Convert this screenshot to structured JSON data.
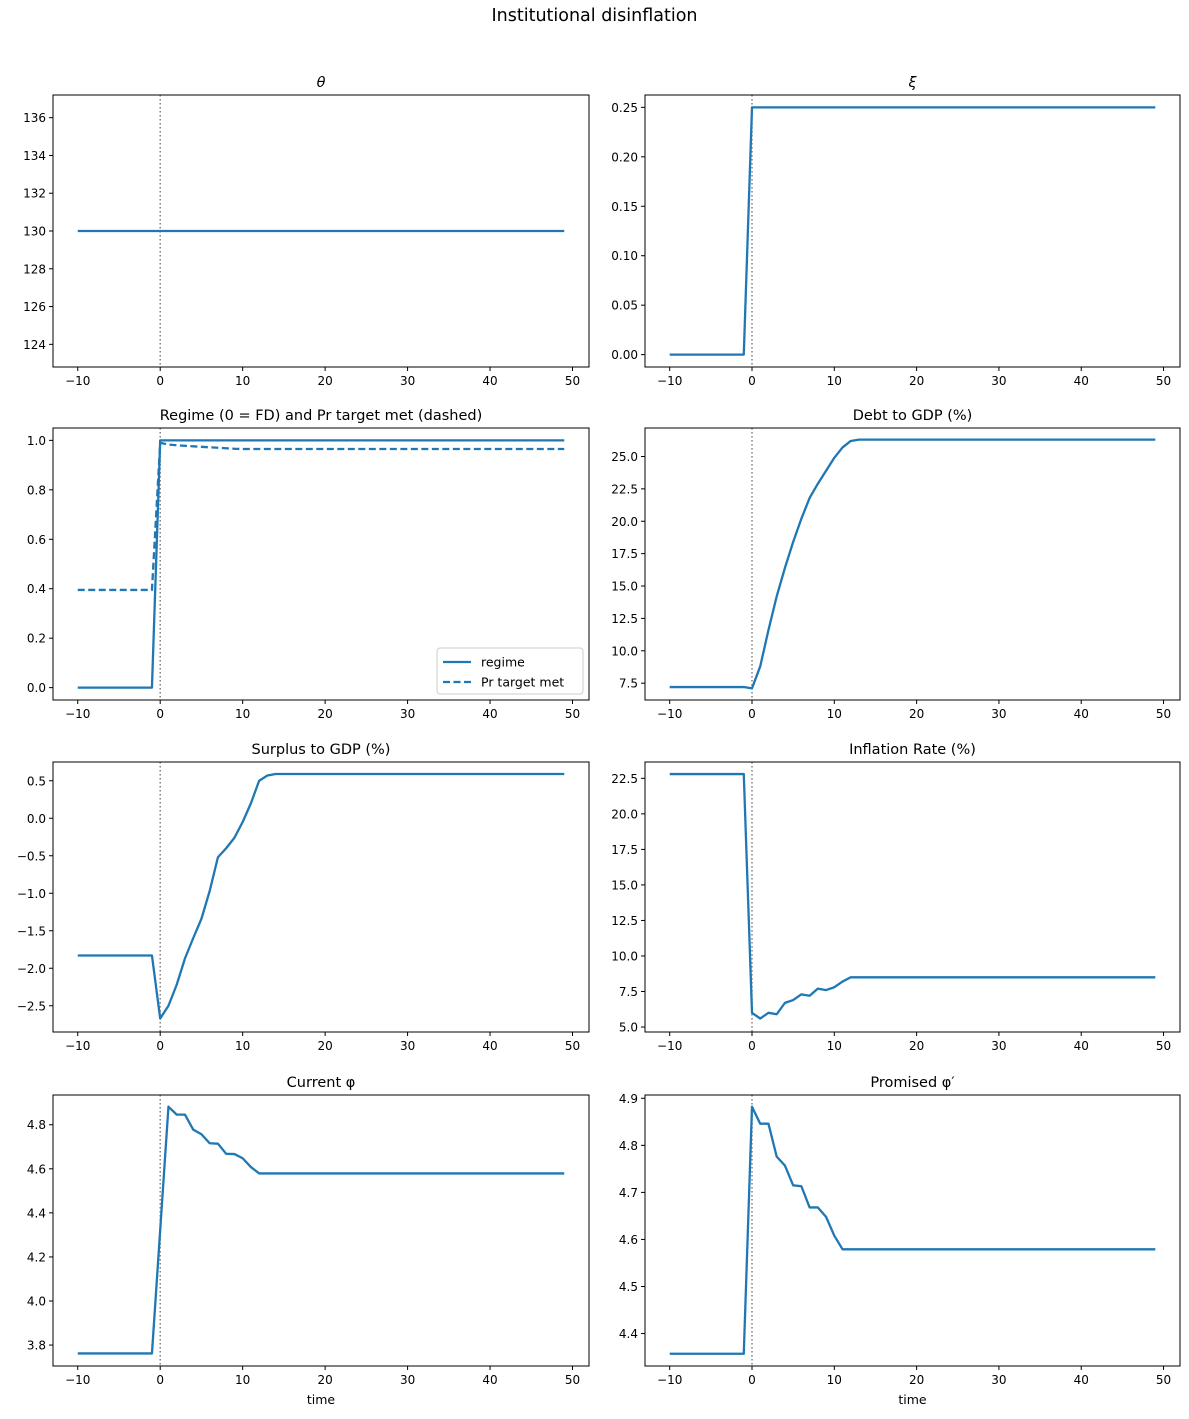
{
  "figure": {
    "title": "Institutional disinflation",
    "line_color": "#1f77b4",
    "vline_color": "#808080"
  },
  "chart_data": [
    {
      "id": "theta",
      "type": "line",
      "title": "θ",
      "title_italic": true,
      "xlabel": "",
      "ylabel": "",
      "xlim": [
        -13,
        52
      ],
      "ylim": [
        122.8,
        137.2
      ],
      "xticks": [
        -10,
        0,
        10,
        20,
        30,
        40,
        50
      ],
      "yticks": [
        124,
        126,
        128,
        130,
        132,
        134,
        136
      ],
      "ytick_labels": [
        "124",
        "126",
        "128",
        "130",
        "132",
        "134",
        "136"
      ],
      "vline_x": 0,
      "series": [
        {
          "name": "theta",
          "style": "solid",
          "x": [
            -10,
            49
          ],
          "y": [
            130,
            130
          ]
        }
      ]
    },
    {
      "id": "xi",
      "type": "line",
      "title": "ξ",
      "title_italic": true,
      "xlabel": "",
      "ylabel": "",
      "xlim": [
        -13,
        52
      ],
      "ylim": [
        -0.0125,
        0.2625
      ],
      "xticks": [
        -10,
        0,
        10,
        20,
        30,
        40,
        50
      ],
      "yticks": [
        0.0,
        0.05,
        0.1,
        0.15,
        0.2,
        0.25
      ],
      "ytick_labels": [
        "0.00",
        "0.05",
        "0.10",
        "0.15",
        "0.20",
        "0.25"
      ],
      "vline_x": 0,
      "series": [
        {
          "name": "xi",
          "style": "solid",
          "x": [
            -10,
            -1,
            0,
            49
          ],
          "y": [
            0.0,
            0.0,
            0.25,
            0.25
          ]
        }
      ]
    },
    {
      "id": "regime",
      "type": "line",
      "title": "Regime (0 = FD) and Pr target met (dashed)",
      "title_italic": false,
      "xlabel": "",
      "ylabel": "",
      "xlim": [
        -13,
        52
      ],
      "ylim": [
        -0.05,
        1.05
      ],
      "xticks": [
        -10,
        0,
        10,
        20,
        30,
        40,
        50
      ],
      "yticks": [
        0.0,
        0.2,
        0.4,
        0.6,
        0.8,
        1.0
      ],
      "ytick_labels": [
        "0.0",
        "0.2",
        "0.4",
        "0.6",
        "0.8",
        "1.0"
      ],
      "vline_x": 0,
      "legend": {
        "position": "lower right",
        "entries": [
          "regime",
          "Pr target met"
        ]
      },
      "series": [
        {
          "name": "regime",
          "style": "solid",
          "x": [
            -10,
            -1,
            0,
            49
          ],
          "y": [
            0,
            0,
            1,
            1
          ]
        },
        {
          "name": "Pr target met",
          "style": "dashed",
          "x": [
            -10,
            -1,
            0,
            1,
            2,
            3,
            4,
            5,
            6,
            7,
            8,
            9,
            10,
            49
          ],
          "y": [
            0.395,
            0.395,
            0.99,
            0.983,
            0.98,
            0.978,
            0.976,
            0.974,
            0.972,
            0.97,
            0.968,
            0.966,
            0.965,
            0.965
          ]
        }
      ]
    },
    {
      "id": "debt",
      "type": "line",
      "title": "Debt to GDP (%)",
      "title_italic": false,
      "xlabel": "",
      "ylabel": "",
      "xlim": [
        -13,
        52
      ],
      "ylim": [
        6.2,
        27.2
      ],
      "xticks": [
        -10,
        0,
        10,
        20,
        30,
        40,
        50
      ],
      "yticks": [
        7.5,
        10.0,
        12.5,
        15.0,
        17.5,
        20.0,
        22.5,
        25.0
      ],
      "ytick_labels": [
        "7.5",
        "10.0",
        "12.5",
        "15.0",
        "17.5",
        "20.0",
        "22.5",
        "25.0"
      ],
      "vline_x": 0,
      "series": [
        {
          "name": "debt",
          "style": "solid",
          "x": [
            -10,
            -1,
            0,
            1,
            2,
            3,
            4,
            5,
            6,
            7,
            8,
            9,
            10,
            11,
            12,
            13,
            14,
            49
          ],
          "y": [
            7.2,
            7.2,
            7.1,
            8.8,
            11.6,
            14.2,
            16.4,
            18.4,
            20.2,
            21.8,
            22.9,
            23.9,
            24.9,
            25.7,
            26.2,
            26.3,
            26.3,
            26.3
          ]
        }
      ]
    },
    {
      "id": "surplus",
      "type": "line",
      "title": "Surplus to GDP (%)",
      "title_italic": false,
      "xlabel": "",
      "ylabel": "",
      "xlim": [
        -13,
        52
      ],
      "ylim": [
        -2.85,
        0.75
      ],
      "xticks": [
        -10,
        0,
        10,
        20,
        30,
        40,
        50
      ],
      "yticks": [
        -2.5,
        -2.0,
        -1.5,
        -1.0,
        -0.5,
        0.0,
        0.5
      ],
      "ytick_labels": [
        "−2.5",
        "−2.0",
        "−1.5",
        "−1.0",
        "−0.5",
        "0.0",
        "0.5"
      ],
      "vline_x": 0,
      "series": [
        {
          "name": "surplus",
          "style": "solid",
          "x": [
            -10,
            -1,
            0,
            1,
            2,
            3,
            4,
            5,
            6,
            7,
            8,
            9,
            10,
            11,
            12,
            13,
            14,
            15,
            49
          ],
          "y": [
            -1.83,
            -1.83,
            -2.67,
            -2.5,
            -2.22,
            -1.87,
            -1.6,
            -1.34,
            -0.97,
            -0.52,
            -0.4,
            -0.26,
            -0.05,
            0.2,
            0.5,
            0.57,
            0.59,
            0.59,
            0.59
          ]
        }
      ]
    },
    {
      "id": "inflation",
      "type": "line",
      "title": "Inflation Rate (%)",
      "title_italic": false,
      "xlabel": "",
      "ylabel": "",
      "xlim": [
        -13,
        52
      ],
      "ylim": [
        4.65,
        23.65
      ],
      "xticks": [
        -10,
        0,
        10,
        20,
        30,
        40,
        50
      ],
      "yticks": [
        5.0,
        7.5,
        10.0,
        12.5,
        15.0,
        17.5,
        20.0,
        22.5
      ],
      "ytick_labels": [
        "5.0",
        "7.5",
        "10.0",
        "12.5",
        "15.0",
        "17.5",
        "20.0",
        "22.5"
      ],
      "vline_x": 0,
      "series": [
        {
          "name": "inflation",
          "style": "solid",
          "x": [
            -10,
            -1,
            0,
            1,
            2,
            3,
            4,
            5,
            6,
            7,
            8,
            9,
            10,
            11,
            12,
            49
          ],
          "y": [
            22.8,
            22.8,
            6.0,
            5.6,
            6.0,
            5.9,
            6.7,
            6.9,
            7.3,
            7.2,
            7.7,
            7.6,
            7.8,
            8.2,
            8.5,
            8.5
          ]
        }
      ]
    },
    {
      "id": "phi",
      "type": "line",
      "title": "Current φ",
      "title_italic": false,
      "xlabel": "time",
      "ylabel": "",
      "xlim": [
        -13,
        52
      ],
      "ylim": [
        3.705,
        4.935
      ],
      "xticks": [
        -10,
        0,
        10,
        20,
        30,
        40,
        50
      ],
      "yticks": [
        3.8,
        4.0,
        4.2,
        4.4,
        4.6,
        4.8
      ],
      "ytick_labels": [
        "3.8",
        "4.0",
        "4.2",
        "4.4",
        "4.6",
        "4.8"
      ],
      "vline_x": 0,
      "series": [
        {
          "name": "phi",
          "style": "solid",
          "x": [
            -10,
            -1,
            1,
            2,
            3,
            4,
            5,
            6,
            7,
            8,
            9,
            10,
            11,
            12,
            49
          ],
          "y": [
            3.762,
            3.762,
            4.882,
            4.846,
            4.846,
            4.778,
            4.757,
            4.716,
            4.714,
            4.668,
            4.667,
            4.648,
            4.608,
            4.579,
            4.579
          ]
        }
      ]
    },
    {
      "id": "phi_prime",
      "type": "line",
      "title": "Promised φ′",
      "title_italic": false,
      "xlabel": "time",
      "ylabel": "",
      "xlim": [
        -13,
        52
      ],
      "ylim": [
        4.331,
        4.907
      ],
      "xticks": [
        -10,
        0,
        10,
        20,
        30,
        40,
        50
      ],
      "yticks": [
        4.4,
        4.5,
        4.6,
        4.7,
        4.8,
        4.9
      ],
      "ytick_labels": [
        "4.4",
        "4.5",
        "4.6",
        "4.7",
        "4.8",
        "4.9"
      ],
      "vline_x": 0,
      "series": [
        {
          "name": "phi_prime",
          "style": "solid",
          "x": [
            -10,
            -1,
            0,
            1,
            2,
            3,
            4,
            5,
            6,
            7,
            8,
            9,
            10,
            11,
            49
          ],
          "y": [
            4.357,
            4.357,
            4.882,
            4.846,
            4.846,
            4.776,
            4.757,
            4.715,
            4.713,
            4.668,
            4.668,
            4.648,
            4.608,
            4.579,
            4.579
          ]
        }
      ]
    }
  ]
}
